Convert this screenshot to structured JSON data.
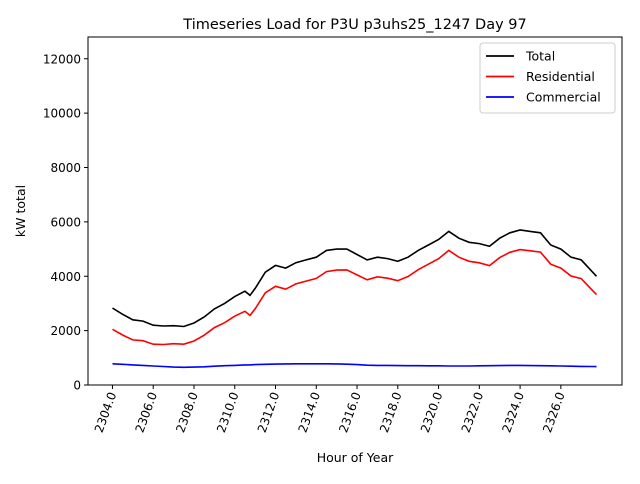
{
  "chart_data": {
    "type": "line",
    "title": "Timeseries Load for P3U p3uhs25_1247  Day 97",
    "xlabel": "Hour of Year",
    "ylabel": "kW total",
    "xlim": [
      2302.8,
      2329.0
    ],
    "ylim": [
      0,
      12800
    ],
    "xticks": [
      2304,
      2306,
      2308,
      2310,
      2312,
      2314,
      2316,
      2318,
      2320,
      2322,
      2324,
      2326
    ],
    "xtick_labels": [
      "2304.0",
      "2306.0",
      "2308.0",
      "2310.0",
      "2312.0",
      "2314.0",
      "2316.0",
      "2318.0",
      "2320.0",
      "2322.0",
      "2324.0",
      "2326.0"
    ],
    "yticks": [
      0,
      2000,
      4000,
      6000,
      8000,
      10000,
      12000
    ],
    "ytick_labels": [
      "0",
      "2000",
      "4000",
      "6000",
      "8000",
      "10000",
      "12000"
    ],
    "grid": false,
    "legend_position": "top-right",
    "x": [
      2304,
      2304.5,
      2305,
      2305.5,
      2306,
      2306.5,
      2307,
      2307.5,
      2308,
      2308.5,
      2309,
      2309.5,
      2310,
      2310.5,
      2310.75,
      2311,
      2311.5,
      2312,
      2312.5,
      2313,
      2313.5,
      2314,
      2314.5,
      2315,
      2315.5,
      2316,
      2316.5,
      2317,
      2317.5,
      2318,
      2318.5,
      2319,
      2319.5,
      2320,
      2320.5,
      2321,
      2321.5,
      2322,
      2322.5,
      2323,
      2323.5,
      2324,
      2324.5,
      2325,
      2325.5,
      2326,
      2326.5,
      2327,
      2327.5,
      2327.75
    ],
    "series": [
      {
        "name": "Total",
        "color": "#000000",
        "values": [
          2830,
          2600,
          2400,
          2350,
          2200,
          2170,
          2180,
          2150,
          2280,
          2500,
          2800,
          3000,
          3250,
          3450,
          3300,
          3550,
          4150,
          4400,
          4300,
          4500,
          4600,
          4700,
          4950,
          5000,
          5000,
          4800,
          4600,
          4700,
          4650,
          4550,
          4700,
          4950,
          5150,
          5350,
          5650,
          5400,
          5250,
          5200,
          5100,
          5400,
          5600,
          5700,
          5650,
          5600,
          5150,
          5000,
          4700,
          4600,
          4200,
          4000
        ]
      },
      {
        "name": "Residential",
        "color": "#ff0000",
        "values": [
          2050,
          1840,
          1660,
          1630,
          1500,
          1490,
          1520,
          1500,
          1620,
          1830,
          2110,
          2290,
          2530,
          2710,
          2560,
          2800,
          3390,
          3630,
          3525,
          3720,
          3820,
          3920,
          4170,
          4225,
          4235,
          4050,
          3870,
          3980,
          3930,
          3835,
          3990,
          4240,
          4445,
          4645,
          4950,
          4700,
          4550,
          4495,
          4390,
          4685,
          4880,
          4980,
          4935,
          4890,
          4445,
          4300,
          4010,
          3915,
          3520,
          3325
        ]
      },
      {
        "name": "Commercial",
        "color": "#0000ff",
        "values": [
          780,
          760,
          740,
          720,
          700,
          680,
          660,
          650,
          660,
          670,
          690,
          710,
          720,
          740,
          740,
          750,
          760,
          770,
          775,
          780,
          780,
          780,
          780,
          775,
          765,
          750,
          730,
          720,
          720,
          715,
          710,
          710,
          705,
          705,
          700,
          700,
          700,
          705,
          710,
          715,
          720,
          720,
          715,
          710,
          705,
          700,
          690,
          685,
          680,
          675
        ]
      }
    ]
  }
}
